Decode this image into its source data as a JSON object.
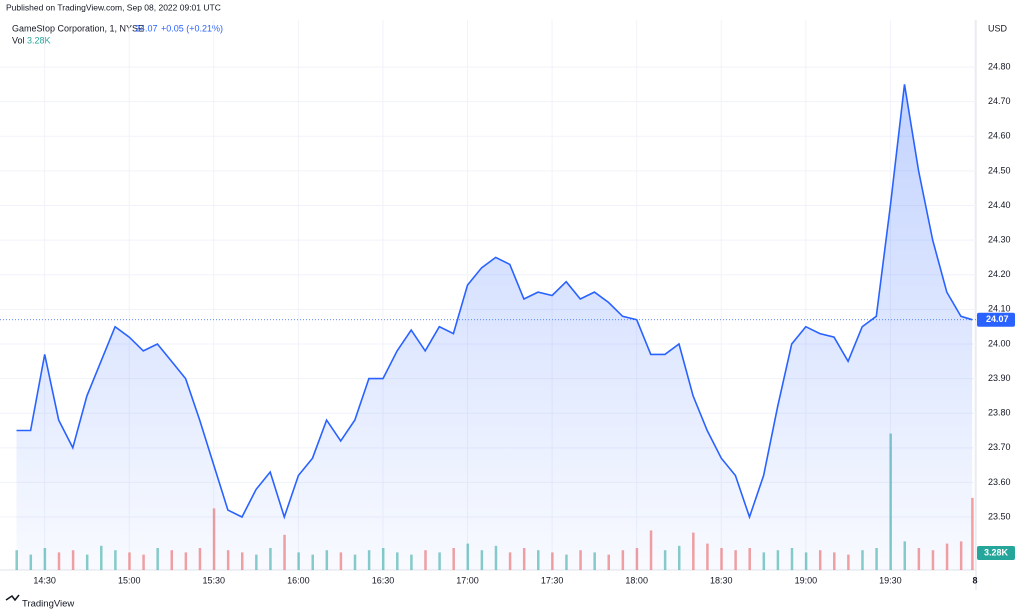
{
  "chart_data": {
    "type": "area",
    "published": "Published on TradingView.com, Sep 08, 2022 09:01 UTC",
    "title": "GameStop Corporation, 1, NYSE",
    "change": "+0.05 (+0.21%)",
    "volume_title": "Vol",
    "currency": "USD",
    "brand": "TradingView",
    "x": [
      "14:20",
      "14:25",
      "14:30",
      "14:35",
      "14:40",
      "14:45",
      "14:50",
      "14:55",
      "15:00",
      "15:05",
      "15:10",
      "15:15",
      "15:20",
      "15:25",
      "15:30",
      "15:35",
      "15:40",
      "15:45",
      "15:50",
      "15:55",
      "16:00",
      "16:05",
      "16:10",
      "16:15",
      "16:20",
      "16:25",
      "16:30",
      "16:35",
      "16:40",
      "16:45",
      "16:50",
      "16:55",
      "17:00",
      "17:05",
      "17:10",
      "17:15",
      "17:20",
      "17:25",
      "17:30",
      "17:35",
      "17:40",
      "17:45",
      "17:50",
      "17:55",
      "18:00",
      "18:05",
      "18:10",
      "18:15",
      "18:20",
      "18:25",
      "18:30",
      "18:35",
      "18:40",
      "18:45",
      "18:50",
      "18:55",
      "19:00",
      "19:05",
      "19:10",
      "19:15",
      "19:20",
      "19:25",
      "19:30",
      "19:35",
      "19:40",
      "19:45",
      "19:50",
      "19:55",
      "19:59"
    ],
    "series": [
      {
        "color": "#2962ff",
        "values": [
          23.75,
          23.75,
          23.97,
          23.78,
          23.7,
          23.85,
          23.95,
          24.05,
          24.02,
          23.98,
          24.0,
          23.95,
          23.9,
          23.78,
          23.65,
          23.52,
          23.5,
          23.58,
          23.63,
          23.5,
          23.62,
          23.67,
          23.78,
          23.72,
          23.78,
          23.9,
          23.9,
          23.98,
          24.04,
          23.98,
          24.05,
          24.03,
          24.17,
          24.22,
          24.25,
          24.23,
          24.13,
          24.15,
          24.14,
          24.18,
          24.13,
          24.15,
          24.12,
          24.08,
          24.07,
          23.97,
          23.97,
          24.0,
          23.85,
          23.75,
          23.67,
          23.62,
          23.5,
          23.62,
          23.82,
          24.0,
          24.05,
          24.03,
          24.02,
          23.95,
          24.05,
          24.08,
          24.4,
          24.75,
          24.5,
          24.3,
          24.15,
          24.08,
          24.07
        ]
      }
    ],
    "volume": {
      "axis": "y2",
      "up_color": "#26a69a",
      "down_color": "#ef5350",
      "values": [
        0.9,
        0.7,
        1.0,
        0.8,
        0.9,
        0.7,
        1.1,
        0.9,
        0.8,
        0.7,
        1.0,
        0.9,
        0.8,
        1.0,
        2.8,
        0.9,
        0.8,
        0.7,
        1.0,
        1.6,
        0.8,
        0.7,
        0.9,
        0.8,
        0.7,
        0.9,
        1.0,
        0.8,
        0.7,
        0.9,
        0.8,
        1.0,
        1.2,
        0.9,
        1.1,
        0.8,
        1.0,
        0.9,
        0.8,
        0.7,
        0.9,
        0.8,
        0.7,
        0.9,
        1.0,
        1.8,
        0.9,
        1.1,
        1.7,
        1.2,
        1.0,
        0.9,
        1.0,
        0.8,
        0.9,
        1.0,
        0.8,
        0.9,
        0.8,
        0.7,
        0.9,
        1.0,
        6.2,
        1.3,
        1.0,
        0.9,
        1.2,
        1.3,
        3.28
      ],
      "value_labels": [
        null,
        null,
        null,
        null,
        null,
        null,
        null,
        null,
        null,
        null,
        null,
        null,
        null,
        null,
        null,
        null,
        null,
        null,
        null,
        null,
        null,
        null,
        null,
        null,
        null,
        null,
        null,
        null,
        null,
        null,
        null,
        null,
        null,
        null,
        null,
        null,
        null,
        null,
        null,
        null,
        null,
        null,
        null,
        null,
        null,
        null,
        null,
        null,
        null,
        null,
        null,
        null,
        null,
        null,
        null,
        null,
        null,
        null,
        null,
        null,
        null,
        null,
        null,
        null,
        null,
        null,
        null,
        null,
        "3.28K"
      ]
    },
    "xlim": [
      "14:17",
      "20:00"
    ],
    "xticks": [
      "14:30",
      "15:00",
      "15:30",
      "16:00",
      "16:30",
      "17:00",
      "17:30",
      "18:00",
      "18:30",
      "19:00",
      "19:30",
      {
        "value": "20:00",
        "label": "8"
      }
    ],
    "ylim": [
      23.347,
      24.936
    ],
    "yticks": [
      {
        "value": 23.5,
        "label": "23.50"
      },
      {
        "value": 23.6,
        "label": "23.60"
      },
      {
        "value": 23.7,
        "label": "23.70"
      },
      {
        "value": 23.8,
        "label": "23.80"
      },
      {
        "value": 23.9,
        "label": "23.90"
      },
      {
        "value": 24.0,
        "label": "24.00"
      },
      {
        "value": 24.1,
        "label": "24.10"
      },
      {
        "value": 24.2,
        "label": "24.20"
      },
      {
        "value": 24.3,
        "label": "24.30"
      },
      {
        "value": 24.4,
        "label": "24.40"
      },
      {
        "value": 24.5,
        "label": "24.50"
      },
      {
        "value": 24.6,
        "label": "24.60"
      },
      {
        "value": 24.7,
        "label": "24.70"
      },
      {
        "value": 24.8,
        "label": "24.80"
      }
    ],
    "y2lim": [
      0,
      25
    ],
    "grid": true
  }
}
